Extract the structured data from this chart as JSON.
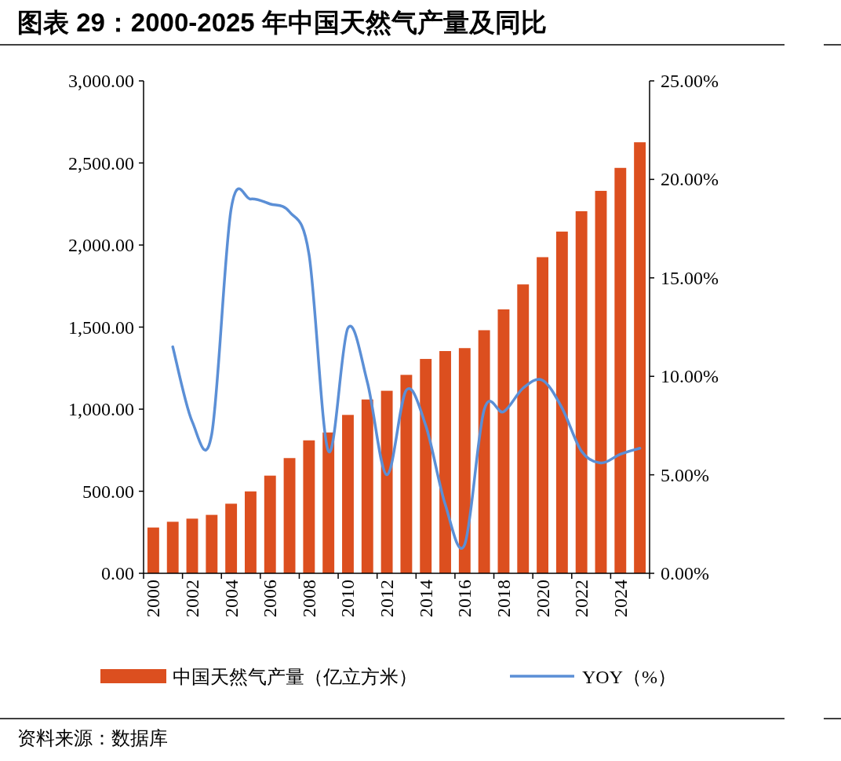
{
  "chart_data": {
    "type": "bar",
    "title": "图表 29：2000-2025 年中国天然气产量及同比",
    "categories": [
      "2000",
      null,
      "2002",
      null,
      "2004",
      null,
      "2006",
      null,
      "2008",
      null,
      "2010",
      null,
      "2012",
      null,
      "2014",
      null,
      "2016",
      null,
      "2018",
      null,
      "2020",
      null,
      "2022",
      null,
      "2024",
      null
    ],
    "series": [
      {
        "name": "中国天然气产量（亿立方米）",
        "color": "#dc4f1f",
        "values": [
          279,
          314,
          333,
          356,
          424,
          499,
          595,
          702,
          810,
          858,
          965,
          1059,
          1112,
          1209,
          1306,
          1354,
          1372,
          1481,
          1608,
          1760,
          1926,
          2082,
          2206,
          2330,
          2470,
          2626
        ]
      },
      {
        "name": "YOY（%）",
        "type": "line",
        "axis": "y2",
        "color": "#5b8fd6",
        "values": [
          null,
          11.5,
          7.7,
          7.05,
          18.5,
          19.0,
          18.75,
          18.35,
          16.2,
          6.2,
          12.45,
          9.7,
          5.0,
          9.3,
          7.5,
          3.5,
          1.46,
          8.3,
          8.2,
          9.4,
          9.8,
          8.4,
          6.2,
          5.6,
          6.05,
          6.35
        ]
      }
    ],
    "ylim": [
      0,
      3000
    ],
    "yticks": [
      {
        "value": 0,
        "label": "0.00"
      },
      {
        "value": 500,
        "label": "500.00"
      },
      {
        "value": 1000,
        "label": "1,000.00"
      },
      {
        "value": 1500,
        "label": "1,500.00"
      },
      {
        "value": 2000,
        "label": "2,000.00"
      },
      {
        "value": 2500,
        "label": "2,500.00"
      },
      {
        "value": 3000,
        "label": "3,000.00"
      }
    ],
    "y2lim": [
      0,
      25
    ],
    "y2ticks": [
      {
        "value": 0,
        "label": "0.00%"
      },
      {
        "value": 5,
        "label": "5.00%"
      },
      {
        "value": 10,
        "label": "10.00%"
      },
      {
        "value": 15,
        "label": "15.00%"
      },
      {
        "value": 20,
        "label": "20.00%"
      },
      {
        "value": 25,
        "label": "25.00%"
      }
    ],
    "legend": "bottom",
    "annotations": [
      "资料来源：数据库"
    ]
  }
}
